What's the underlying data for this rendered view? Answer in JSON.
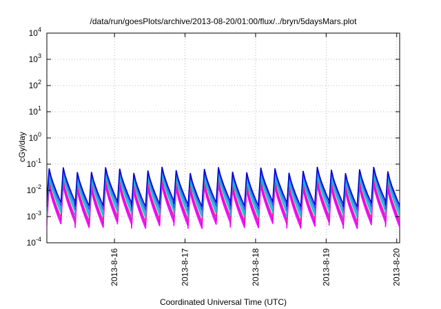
{
  "chart_data": {
    "type": "line",
    "title": "/data/run/goesPlots/archive/2013-08-20/01:00/flux/../bryn/5daysMars.plot",
    "xlabel": "Coordinated Universal Time (UTC)",
    "ylabel": "cGy/day",
    "y_scale": "log",
    "ylim": [
      0.0001,
      10000
    ],
    "y_ticks": [
      {
        "base": "10",
        "exp": "-4",
        "value": 0.0001
      },
      {
        "base": "10",
        "exp": "-3",
        "value": 0.001
      },
      {
        "base": "10",
        "exp": "-2",
        "value": 0.01
      },
      {
        "base": "10",
        "exp": "-1",
        "value": 0.1
      },
      {
        "base": "10",
        "exp": "0",
        "value": 1
      },
      {
        "base": "10",
        "exp": "1",
        "value": 10
      },
      {
        "base": "10",
        "exp": "2",
        "value": 100
      },
      {
        "base": "10",
        "exp": "3",
        "value": 1000
      },
      {
        "base": "10",
        "exp": "4",
        "value": 10000
      }
    ],
    "xlim": [
      "2013-08-15 01:00",
      "2013-08-20 01:00"
    ],
    "x_ticks": [
      {
        "label": "2013-8-16",
        "date": "2013-08-16 00:00"
      },
      {
        "label": "2013-8-17",
        "date": "2013-08-17 00:00"
      },
      {
        "label": "2013-8-18",
        "date": "2013-08-18 00:00"
      },
      {
        "label": "2013-8-19",
        "date": "2013-08-19 00:00"
      },
      {
        "label": "2013-8-20",
        "date": "2013-08-20 00:00"
      }
    ],
    "grid": true,
    "grid_style": "dotted",
    "series": [
      {
        "color": "#ff00ff",
        "peak": 0.012,
        "trough": 0.00045
      },
      {
        "color": "#d000ff",
        "peak": 0.016,
        "trough": 0.0006
      },
      {
        "color": "#ff2090",
        "peak": 0.02,
        "trough": 0.0008
      },
      {
        "color": "#00c8c8",
        "peak": 0.03,
        "trough": 0.0012
      },
      {
        "color": "#20b0e0",
        "peak": 0.04,
        "trough": 0.0016
      },
      {
        "color": "#3050ff",
        "peak": 0.05,
        "trough": 0.0022
      },
      {
        "color": "#0000d0",
        "peak": 0.06,
        "trough": 0.003
      }
    ],
    "cycle_hours": 4.8
  }
}
